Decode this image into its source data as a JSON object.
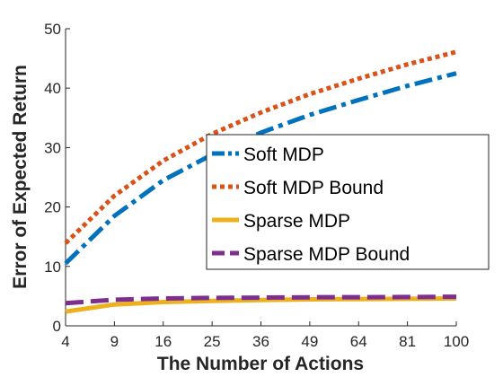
{
  "chart_data": {
    "type": "line",
    "xlabel": "The Number of Actions",
    "ylabel": "Error of Expected Return",
    "xlim": [
      4,
      100
    ],
    "ylim": [
      0,
      50
    ],
    "xticks": [
      4,
      9,
      16,
      25,
      36,
      49,
      64,
      81,
      100
    ],
    "xtick_labels": [
      "4",
      "9",
      "16",
      "25",
      "36",
      "49",
      "64",
      "81",
      "100"
    ],
    "yticks": [
      0,
      10,
      20,
      30,
      40,
      50
    ],
    "ytick_labels": [
      "0",
      "10",
      "20",
      "30",
      "40",
      "50"
    ],
    "x_scale": "sqrt",
    "grid": false,
    "legend_position": "right",
    "x": [
      4,
      9,
      16,
      25,
      36,
      49,
      64,
      81,
      100
    ],
    "series": [
      {
        "name": "Soft MDP",
        "color": "#0072BD",
        "style": "dashdot",
        "values": [
          10.5,
          18.5,
          24.5,
          28.8,
          32.5,
          35.5,
          38.0,
          40.4,
          42.5
        ]
      },
      {
        "name": "Soft MDP Bound",
        "color": "#D95319",
        "style": "dotted",
        "values": [
          13.9,
          21.9,
          27.8,
          32.3,
          35.9,
          39.0,
          41.6,
          44.0,
          46.1
        ]
      },
      {
        "name": "Sparse MDP",
        "color": "#EDB120",
        "style": "solid",
        "values": [
          2.4,
          3.6,
          4.0,
          4.2,
          4.35,
          4.45,
          4.5,
          4.55,
          4.6
        ]
      },
      {
        "name": "Sparse MDP Bound",
        "color": "#7E2F8E",
        "style": "dashed",
        "values": [
          3.8,
          4.4,
          4.6,
          4.7,
          4.75,
          4.8,
          4.82,
          4.85,
          4.9
        ]
      }
    ]
  }
}
